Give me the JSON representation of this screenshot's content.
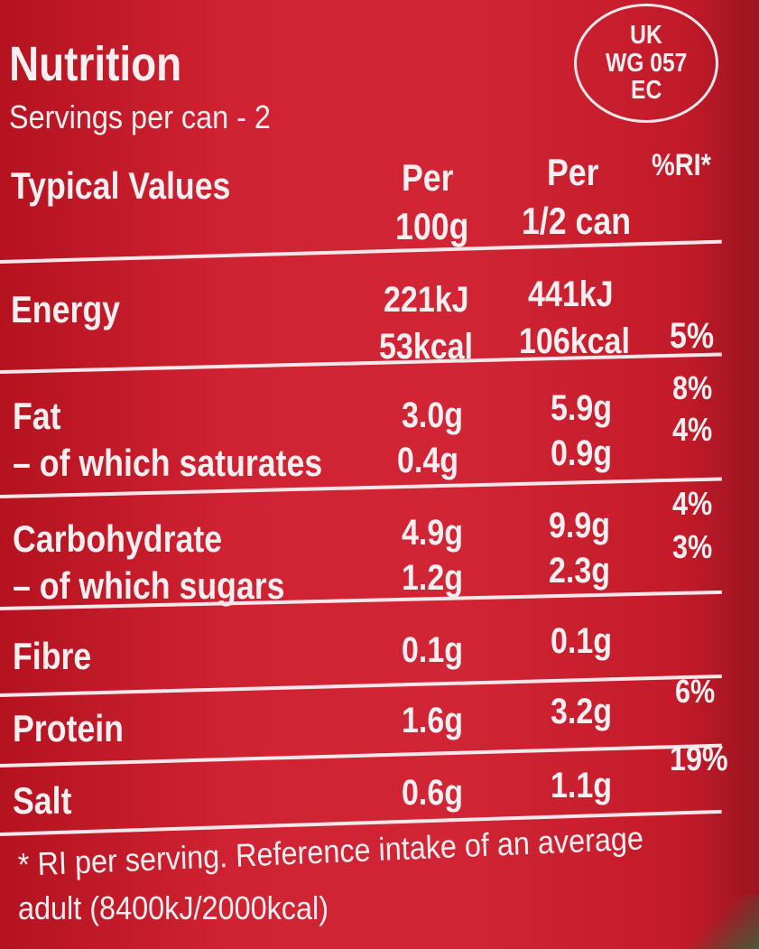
{
  "title": "Nutrition",
  "servings": "Servings per can - 2",
  "stamp": {
    "line1": "UK",
    "line2": "WG 057",
    "line3": "EC"
  },
  "header": {
    "label": "Typical Values",
    "col1_l1": "Per",
    "col1_l2": "100g",
    "col2_l1": "Per",
    "col2_l2": "1/2 can",
    "col3": "%RI*"
  },
  "rows": [
    {
      "name": "Energy",
      "per100_l1": "221kJ",
      "per100_l2": "53kcal",
      "perhalf_l1": "441kJ",
      "perhalf_l2": "106kcal",
      "ri": "5%"
    },
    {
      "name": "Fat",
      "per100": "3.0g",
      "perhalf": "5.9g",
      "ri": "8%"
    },
    {
      "name": "– of which saturates",
      "per100": "0.4g",
      "perhalf": "0.9g",
      "ri": "4%"
    },
    {
      "name": "Carbohydrate",
      "per100": "4.9g",
      "perhalf": "9.9g",
      "ri": "4%"
    },
    {
      "name": "– of which sugars",
      "per100": "1.2g",
      "perhalf": "2.3g",
      "ri": "3%"
    },
    {
      "name": "Fibre",
      "per100": "0.1g",
      "perhalf": "0.1g"
    },
    {
      "name": "Protein",
      "per100": "1.6g",
      "perhalf": "3.2g",
      "ri": "6%"
    },
    {
      "name": "Salt",
      "per100": "0.6g",
      "perhalf": "1.1g",
      "ri": "19%"
    }
  ],
  "footnote": {
    "line1": "* RI per serving. Reference intake of an average",
    "line2": "adult (8400kJ/2000kcal)"
  },
  "colors": {
    "background": "#c81c2c",
    "text": "#fbeef0"
  }
}
